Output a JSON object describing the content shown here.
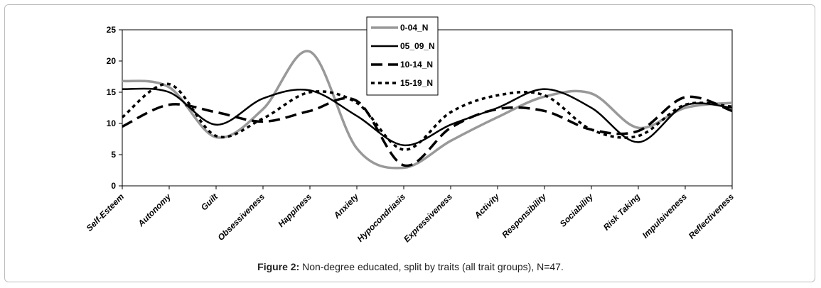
{
  "chart_data": {
    "type": "line",
    "categories": [
      "Self-Esteem",
      "Autonomy",
      "Guilt",
      "Obsessiveness",
      "Happiness",
      "Anxiety",
      "Hypocondriasis",
      "Expressiveness",
      "Activity",
      "Responsibility",
      "Sociability",
      "Risk Taking",
      "Impulsiveness",
      "Reflectiveness"
    ],
    "ylim": [
      0,
      25
    ],
    "yticks": [
      0,
      5,
      10,
      15,
      20,
      25
    ],
    "title": "",
    "xlabel": "",
    "ylabel": "",
    "legend_position": "top-center",
    "series": [
      {
        "name": "0-04_N",
        "color": "#999999",
        "dash": "solid",
        "width": 3.5,
        "values": [
          16.8,
          15.8,
          7.8,
          12.3,
          21.5,
          6.0,
          2.9,
          7.2,
          11.0,
          14.3,
          14.8,
          9.3,
          12.5,
          13.3
        ]
      },
      {
        "name": "05_09_N",
        "color": "#000000",
        "dash": "solid",
        "width": 2.5,
        "values": [
          15.5,
          15.0,
          9.8,
          14.0,
          15.3,
          11.2,
          6.5,
          9.8,
          12.5,
          15.5,
          12.5,
          7.0,
          12.9,
          12.5
        ]
      },
      {
        "name": "10-14_N",
        "color": "#000000",
        "dash": "16,8",
        "width": 3.5,
        "values": [
          9.5,
          13.0,
          11.8,
          10.3,
          12.0,
          13.6,
          3.3,
          9.3,
          12.3,
          12.0,
          9.0,
          8.8,
          14.2,
          12.0
        ]
      },
      {
        "name": "15-19_N",
        "color": "#000000",
        "dash": "5,5",
        "width": 3.5,
        "values": [
          11.0,
          16.3,
          8.0,
          10.8,
          15.0,
          13.3,
          5.8,
          11.8,
          14.5,
          14.5,
          9.0,
          8.0,
          13.0,
          12.7
        ]
      }
    ]
  },
  "caption": {
    "label": "Figure 2:",
    "text": " Non-degree educated, split by traits (all trait groups), N=47."
  }
}
